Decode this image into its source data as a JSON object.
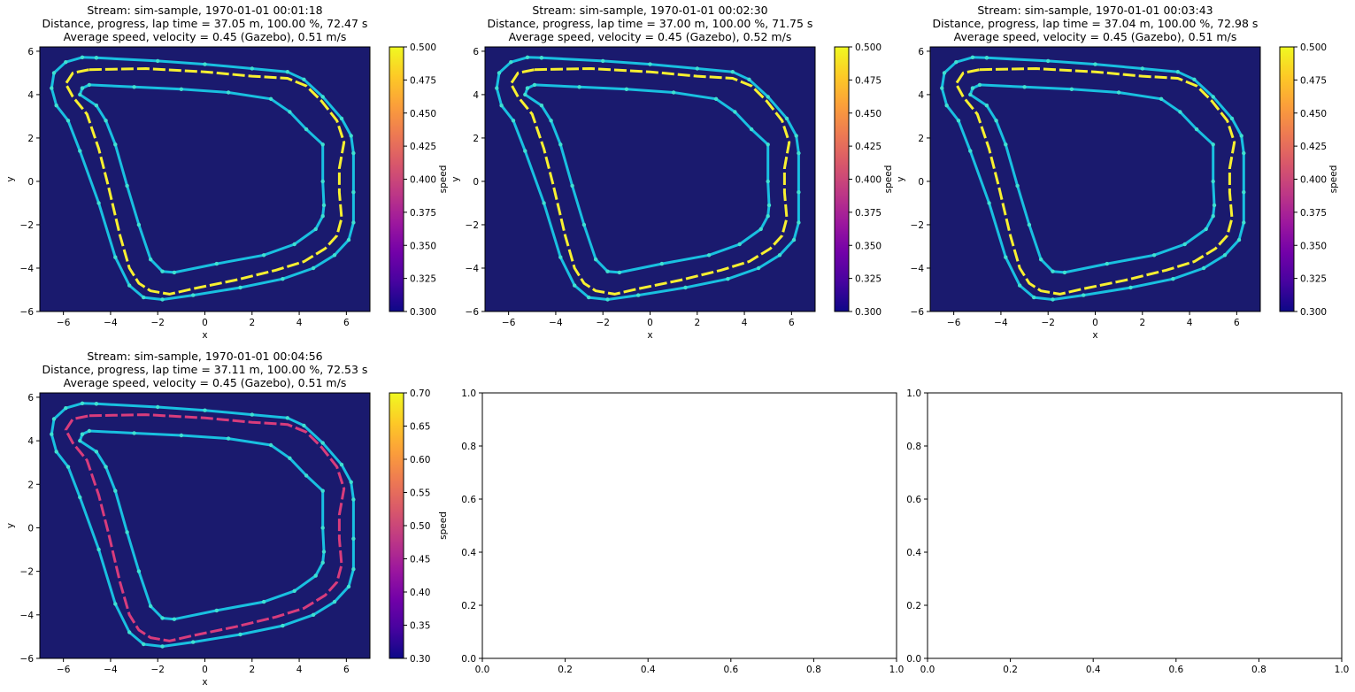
{
  "chart_data": [
    {
      "type": "line",
      "title_lines": [
        "Stream: sim-sample, 1970-01-01 00:01:18",
        "Distance, progress, lap time = 37.05 m, 100.00 %, 72.47 s",
        "Average speed, velocity = 0.45 (Gazebo), 0.51 m/s"
      ],
      "xlabel": "x",
      "ylabel": "y",
      "xlim": [
        -7,
        7
      ],
      "ylim": [
        -6,
        6.2
      ],
      "xticks": [
        "−6",
        "−4",
        "−2",
        "0",
        "2",
        "4",
        "6"
      ],
      "yticks": [
        "−6",
        "−4",
        "−2",
        "0",
        "2",
        "4",
        "6"
      ],
      "colorbar": {
        "label": "speed",
        "range": [
          0.3,
          0.5
        ],
        "ticks": [
          "0.300",
          "0.325",
          "0.350",
          "0.375",
          "0.400",
          "0.425",
          "0.450",
          "0.475",
          "0.500"
        ]
      },
      "track_color": "#19c0e0",
      "lap_color": "#f8f030",
      "background": "#1a1a6e"
    },
    {
      "type": "line",
      "title_lines": [
        "Stream: sim-sample, 1970-01-01 00:02:30",
        "Distance, progress, lap time = 37.00 m, 100.00 %, 71.75 s",
        "Average speed, velocity = 0.45 (Gazebo), 0.52 m/s"
      ],
      "xlabel": "x",
      "ylabel": "y",
      "xlim": [
        -7,
        7
      ],
      "ylim": [
        -6,
        6.2
      ],
      "xticks": [
        "−6",
        "−4",
        "−2",
        "0",
        "2",
        "4",
        "6"
      ],
      "yticks": [
        "−6",
        "−4",
        "−2",
        "0",
        "2",
        "4",
        "6"
      ],
      "colorbar": {
        "label": "speed",
        "range": [
          0.3,
          0.5
        ],
        "ticks": [
          "0.300",
          "0.325",
          "0.350",
          "0.375",
          "0.400",
          "0.425",
          "0.450",
          "0.475",
          "0.500"
        ]
      },
      "track_color": "#19c0e0",
      "lap_color": "#f8f030",
      "background": "#1a1a6e"
    },
    {
      "type": "line",
      "title_lines": [
        "Stream: sim-sample, 1970-01-01 00:03:43",
        "Distance, progress, lap time = 37.04 m, 100.00 %, 72.98 s",
        "Average speed, velocity = 0.45 (Gazebo), 0.51 m/s"
      ],
      "xlabel": "x",
      "ylabel": "y",
      "xlim": [
        -7,
        7
      ],
      "ylim": [
        -6,
        6.2
      ],
      "xticks": [
        "−6",
        "−4",
        "−2",
        "0",
        "2",
        "4",
        "6"
      ],
      "yticks": [
        "−6",
        "−4",
        "−2",
        "0",
        "2",
        "4",
        "6"
      ],
      "colorbar": {
        "label": "speed",
        "range": [
          0.3,
          0.5
        ],
        "ticks": [
          "0.300",
          "0.325",
          "0.350",
          "0.375",
          "0.400",
          "0.425",
          "0.450",
          "0.475",
          "0.500"
        ]
      },
      "track_color": "#19c0e0",
      "lap_color": "#f8f030",
      "background": "#1a1a6e"
    },
    {
      "type": "line",
      "title_lines": [
        "Stream: sim-sample, 1970-01-01 00:04:56",
        "Distance, progress, lap time = 37.11 m, 100.00 %, 72.53 s",
        "Average speed, velocity = 0.45 (Gazebo), 0.51 m/s"
      ],
      "xlabel": "x",
      "ylabel": "y",
      "xlim": [
        -7,
        7
      ],
      "ylim": [
        -6,
        6.2
      ],
      "xticks": [
        "−6",
        "−4",
        "−2",
        "0",
        "2",
        "4",
        "6"
      ],
      "yticks": [
        "−6",
        "−4",
        "−2",
        "0",
        "2",
        "4",
        "6"
      ],
      "colorbar": {
        "label": "speed",
        "range": [
          0.3,
          0.7
        ],
        "ticks": [
          "0.30",
          "0.35",
          "0.40",
          "0.45",
          "0.50",
          "0.55",
          "0.60",
          "0.65",
          "0.70"
        ]
      },
      "track_color": "#19c0e0",
      "lap_color": "#d83c7c",
      "background": "#1a1a6e"
    },
    {
      "type": "line",
      "empty": true,
      "xlim": [
        0,
        1
      ],
      "ylim": [
        0,
        1
      ],
      "xticks": [
        "0.0",
        "0.2",
        "0.4",
        "0.6",
        "0.8",
        "1.0"
      ],
      "yticks": [
        "0.0",
        "0.2",
        "0.4",
        "0.6",
        "0.8",
        "1.0"
      ]
    },
    {
      "type": "line",
      "empty": true,
      "xlim": [
        0,
        1
      ],
      "ylim": [
        0,
        1
      ],
      "xticks": [
        "0.0",
        "0.2",
        "0.4",
        "0.6",
        "0.8",
        "1.0"
      ],
      "yticks": [
        "0.0",
        "0.2",
        "0.4",
        "0.6",
        "0.8",
        "1.0"
      ]
    }
  ],
  "track": {
    "outer": [
      [
        -4.6,
        5.7
      ],
      [
        -2,
        5.55
      ],
      [
        0,
        5.4
      ],
      [
        2,
        5.2
      ],
      [
        3.5,
        5.05
      ],
      [
        4.2,
        4.7
      ],
      [
        5,
        3.9
      ],
      [
        5.8,
        2.9
      ],
      [
        6.2,
        2.1
      ],
      [
        6.3,
        1.3
      ],
      [
        6.3,
        -0.5
      ],
      [
        6.3,
        -1.9
      ],
      [
        6.1,
        -2.7
      ],
      [
        5.5,
        -3.4
      ],
      [
        4.6,
        -4
      ],
      [
        3.3,
        -4.5
      ],
      [
        1.5,
        -4.9
      ],
      [
        -0.5,
        -5.25
      ],
      [
        -1.8,
        -5.45
      ],
      [
        -2.6,
        -5.35
      ],
      [
        -3.2,
        -4.8
      ],
      [
        -3.8,
        -3.5
      ],
      [
        -4.5,
        -1
      ],
      [
        -5.3,
        1.4
      ],
      [
        -5.8,
        2.8
      ],
      [
        -6.3,
        3.5
      ],
      [
        -6.5,
        4.3
      ],
      [
        -6.4,
        5
      ],
      [
        -5.9,
        5.5
      ],
      [
        -5.2,
        5.72
      ],
      [
        -4.6,
        5.7
      ]
    ],
    "inner": [
      [
        -5.2,
        4.3
      ],
      [
        -4.9,
        4.45
      ],
      [
        -3,
        4.35
      ],
      [
        -1,
        4.25
      ],
      [
        1,
        4.1
      ],
      [
        2.8,
        3.8
      ],
      [
        3.6,
        3.2
      ],
      [
        4.3,
        2.4
      ],
      [
        5,
        1.7
      ],
      [
        5,
        0
      ],
      [
        5.05,
        -1.1
      ],
      [
        5,
        -1.6
      ],
      [
        4.7,
        -2.2
      ],
      [
        3.8,
        -2.9
      ],
      [
        2.5,
        -3.4
      ],
      [
        0.5,
        -3.8
      ],
      [
        -1.3,
        -4.2
      ],
      [
        -1.8,
        -4.15
      ],
      [
        -2.3,
        -3.6
      ],
      [
        -2.8,
        -2
      ],
      [
        -3.3,
        -0.2
      ],
      [
        -3.8,
        1.7
      ],
      [
        -4.2,
        2.8
      ],
      [
        -4.6,
        3.5
      ],
      [
        -5.3,
        4
      ],
      [
        -5.2,
        4.3
      ]
    ],
    "lap": [
      [
        -4.9,
        5.15
      ],
      [
        -2.5,
        5.2
      ],
      [
        0,
        5.05
      ],
      [
        2,
        4.85
      ],
      [
        3.5,
        4.75
      ],
      [
        4.3,
        4.4
      ],
      [
        4.95,
        3.7
      ],
      [
        5.6,
        2.8
      ],
      [
        5.9,
        1.8
      ],
      [
        5.7,
        0.6
      ],
      [
        5.7,
        -0.5
      ],
      [
        5.8,
        -1.7
      ],
      [
        5.6,
        -2.5
      ],
      [
        5.1,
        -3.1
      ],
      [
        4.2,
        -3.7
      ],
      [
        3,
        -4.1
      ],
      [
        1.3,
        -4.55
      ],
      [
        -0.5,
        -4.95
      ],
      [
        -1.5,
        -5.2
      ],
      [
        -2.3,
        -5.05
      ],
      [
        -2.8,
        -4.7
      ],
      [
        -3.2,
        -4
      ],
      [
        -3.6,
        -2.5
      ],
      [
        -4.1,
        -0.2
      ],
      [
        -4.5,
        1.5
      ],
      [
        -5,
        3.1
      ],
      [
        -5.6,
        3.9
      ],
      [
        -5.9,
        4.5
      ],
      [
        -5.6,
        5
      ],
      [
        -4.9,
        5.15
      ]
    ]
  }
}
